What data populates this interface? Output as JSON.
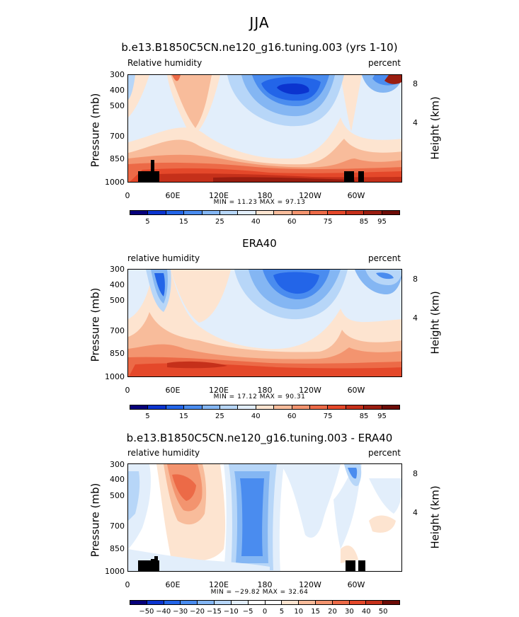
{
  "figure_title": "JJA",
  "panels": [
    {
      "title": "b.e13.B1850C5CN.ne120_g16.tuning.003 (yrs 1-10)",
      "left_label": "Relative humidity",
      "right_label": "percent",
      "stats": "MIN =   11.23   MAX =   97.13",
      "colorbar_labels": [
        "5",
        "15",
        "25",
        "40",
        "60",
        "75",
        "85",
        "95"
      ]
    },
    {
      "title": "ERA40",
      "left_label": "relative humidity",
      "right_label": "percent",
      "stats": "MIN =   17.12   MAX =   90.31",
      "colorbar_labels": [
        "5",
        "15",
        "25",
        "40",
        "60",
        "75",
        "85",
        "95"
      ]
    },
    {
      "title": "b.e13.B1850C5CN.ne120_g16.tuning.003 - ERA40",
      "left_label": "relative humidity",
      "right_label": "percent",
      "stats": "MIN = −29.82   MAX =   32.64",
      "colorbar_labels": [
        "−50",
        "−40",
        "−30",
        "−20",
        "−15",
        "−10",
        "−5",
        "0",
        "5",
        "10",
        "15",
        "20",
        "30",
        "40",
        "50"
      ]
    }
  ],
  "axes": {
    "y_label": "Pressure (mb)",
    "y_ticks": [
      "300",
      "400",
      "500",
      "700",
      "850",
      "1000"
    ],
    "y2_label": "Height (km)",
    "y2_ticks": [
      "8",
      "4"
    ],
    "x_ticks": [
      "0",
      "60E",
      "120E",
      "180",
      "120W",
      "60W"
    ]
  },
  "colors": {
    "mean_scale": [
      "#07007b",
      "#0b34cf",
      "#2365e8",
      "#4a8cef",
      "#84b6f3",
      "#b7d6f8",
      "#e2eefb",
      "#fde4d0",
      "#f8bc9b",
      "#f3946f",
      "#ec6a47",
      "#e4482a",
      "#c5301a",
      "#9a1d10",
      "#6d0c07"
    ],
    "diff_scale": [
      "#07007b",
      "#0b34cf",
      "#2365e8",
      "#4a8cef",
      "#84b6f3",
      "#b7d6f8",
      "#e2eefb",
      "#ffffff",
      "#ffffff",
      "#fde4d0",
      "#f8bc9b",
      "#f3946f",
      "#ec6a47",
      "#e4482a",
      "#c5301a",
      "#6d0c07"
    ]
  },
  "chart_data": [
    {
      "type": "heatmap",
      "title": "b.e13.B1850C5CN.ne120_g16.tuning.003 (yrs 1-10)",
      "xlabel": "",
      "ylabel": "Pressure (mb)",
      "y2label": "Height (km)",
      "x": [
        "0",
        "60E",
        "120E",
        "180",
        "120W",
        "60W"
      ],
      "y": [
        300,
        400,
        500,
        700,
        850,
        1000
      ],
      "ylim": [
        1000,
        300
      ],
      "levels": [
        5,
        10,
        15,
        20,
        25,
        30,
        40,
        50,
        60,
        70,
        75,
        80,
        85,
        90,
        95
      ],
      "min": 11.23,
      "max": 97.13,
      "units": "percent"
    },
    {
      "type": "heatmap",
      "title": "ERA40",
      "ylabel": "Pressure (mb)",
      "y2label": "Height (km)",
      "x": [
        "0",
        "60E",
        "120E",
        "180",
        "120W",
        "60W"
      ],
      "y": [
        300,
        400,
        500,
        700,
        850,
        1000
      ],
      "ylim": [
        1000,
        300
      ],
      "levels": [
        5,
        10,
        15,
        20,
        25,
        30,
        40,
        50,
        60,
        70,
        75,
        80,
        85,
        90,
        95
      ],
      "min": 17.12,
      "max": 90.31,
      "units": "percent"
    },
    {
      "type": "heatmap",
      "title": "b.e13.B1850C5CN.ne120_g16.tuning.003 - ERA40",
      "ylabel": "Pressure (mb)",
      "y2label": "Height (km)",
      "x": [
        "0",
        "60E",
        "120E",
        "180",
        "120W",
        "60W"
      ],
      "y": [
        300,
        400,
        500,
        700,
        850,
        1000
      ],
      "ylim": [
        1000,
        300
      ],
      "levels": [
        -50,
        -40,
        -30,
        -20,
        -15,
        -10,
        -5,
        0,
        5,
        10,
        15,
        20,
        30,
        40,
        50
      ],
      "min": -29.82,
      "max": 32.64,
      "units": "percent"
    }
  ]
}
